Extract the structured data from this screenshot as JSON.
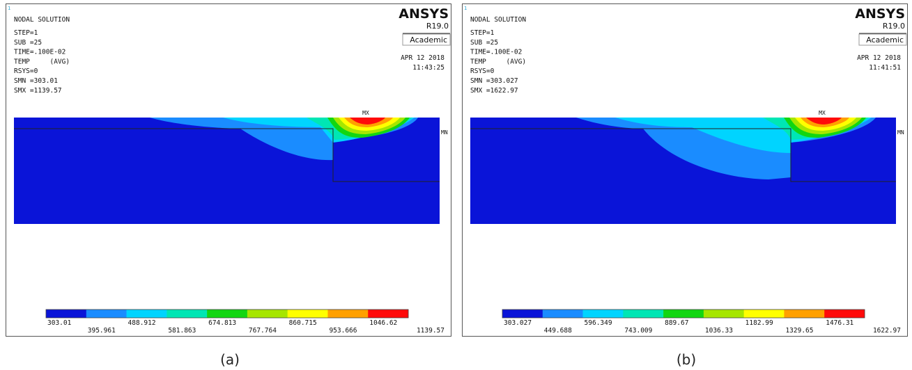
{
  "panels": [
    {
      "index": "1",
      "title": "NODAL SOLUTION",
      "info": [
        "STEP=1",
        "SUB =25",
        "TIME=.100E-02",
        "TEMP     (AVG)",
        "RSYS=0",
        "SMN =303.01",
        "SMX =1139.57"
      ],
      "brand": "ANSYS",
      "version": "R19.0",
      "edition": "Academic",
      "date": "APR 12 2018",
      "time": "11:43:25",
      "max_label": "MX",
      "min_label": "MN",
      "legend": {
        "colors": [
          "#0a14d8",
          "#1a8cff",
          "#00d4ff",
          "#00e6b4",
          "#12d612",
          "#a6e600",
          "#ffff00",
          "#ffa000",
          "#ff0a0a"
        ],
        "labels": [
          "303.01",
          "395.961",
          "488.912",
          "581.863",
          "674.813",
          "767.764",
          "860.715",
          "953.666",
          "1046.62",
          "1139.57"
        ]
      },
      "caption": "(a)"
    },
    {
      "index": "1",
      "title": "NODAL SOLUTION",
      "info": [
        "STEP=1",
        "SUB =25",
        "TIME=.100E-02",
        "TEMP     (AVG)",
        "RSYS=0",
        "SMN =303.027",
        "SMX =1622.97"
      ],
      "brand": "ANSYS",
      "version": "R19.0",
      "edition": "Academic",
      "date": "APR 12 2018",
      "time": "11:41:51",
      "max_label": "MX",
      "min_label": "MN",
      "legend": {
        "colors": [
          "#0a14d8",
          "#1a8cff",
          "#00d4ff",
          "#00e6b4",
          "#12d612",
          "#a6e600",
          "#ffff00",
          "#ffa000",
          "#ff0a0a"
        ],
        "labels": [
          "303.027",
          "449.688",
          "596.349",
          "743.009",
          "889.67",
          "1036.33",
          "1182.99",
          "1329.65",
          "1476.31",
          "1622.97"
        ]
      },
      "caption": "(b)"
    }
  ]
}
